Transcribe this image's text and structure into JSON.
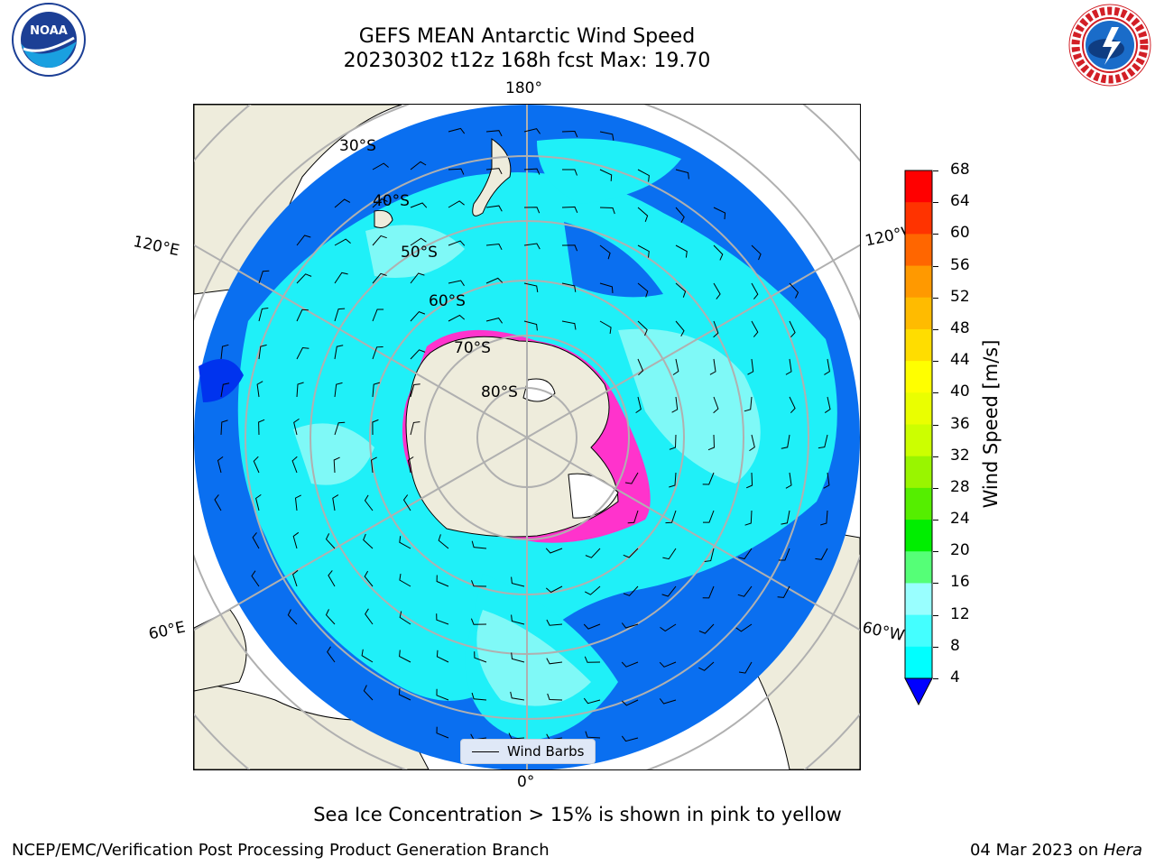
{
  "header": {
    "title_line1": "GEFS MEAN Antarctic Wind Speed",
    "title_line2": "20230302 t12z 168h fcst   Max: 19.70"
  },
  "logos": {
    "left": "noaa-logo",
    "left_text": "NOAA",
    "right": "nws-logo",
    "right_text": "NATIONAL WEATHER SERVICE"
  },
  "map": {
    "longitude_labels": {
      "top": "180°",
      "bottom": "0°",
      "upper_left": "120°E",
      "upper_right": "120°W",
      "lower_left": "60°E",
      "lower_right": "60°W"
    },
    "latitude_labels": [
      "30°S",
      "40°S",
      "50°S",
      "60°S",
      "70°S",
      "80°S"
    ],
    "legend_label": "Wind Barbs",
    "colors": {
      "land": "#eeecdc",
      "ocean_low": "#0a6ff0",
      "ocean_mid": "#1ff0f8",
      "ocean_high": "#7ff9f7",
      "grid": "#b0b0b0",
      "sea_ice": "#ff33cc"
    }
  },
  "colorbar": {
    "label": "Wind Speed [m/s]",
    "ticks": [
      "68",
      "64",
      "60",
      "56",
      "52",
      "48",
      "44",
      "40",
      "36",
      "32",
      "28",
      "24",
      "20",
      "16",
      "12",
      "8",
      "4"
    ],
    "colors": [
      "#ff0000",
      "#ff3300",
      "#ff6600",
      "#ff9900",
      "#ffbb00",
      "#ffdd00",
      "#ffff00",
      "#eaff00",
      "#ccff00",
      "#99f500",
      "#55ee00",
      "#00ee00",
      "#55ff77",
      "#99ffff",
      "#44ffff",
      "#00ffff",
      "#0077ff"
    ],
    "underflow_color": "#0000ff"
  },
  "notes": {
    "sea_ice": "Sea Ice Concentration > 15% is shown in pink to yellow"
  },
  "footer": {
    "left": "NCEP/EMC/Verification Post Processing Product Generation Branch",
    "right_date": "04 Mar 2023 on ",
    "right_machine": "Hera"
  }
}
